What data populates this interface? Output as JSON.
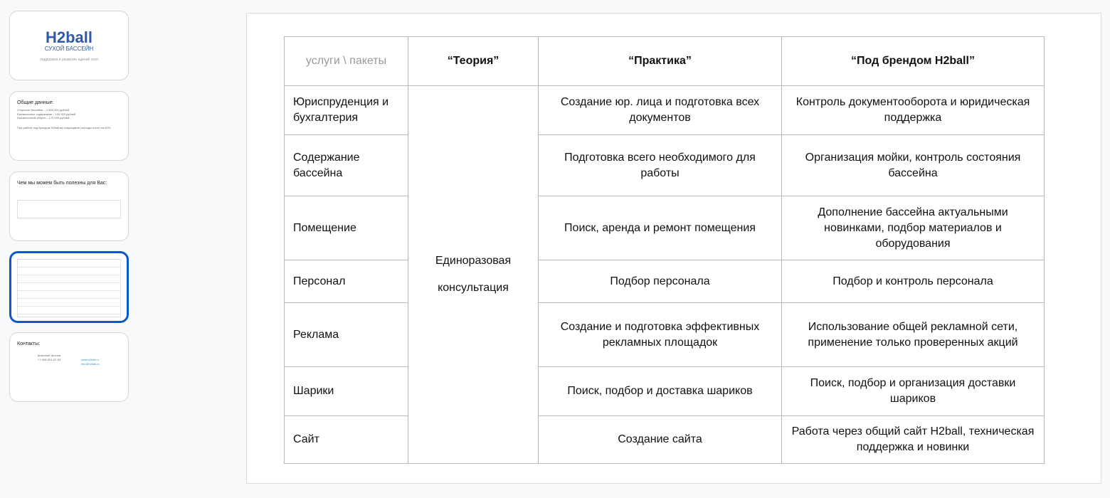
{
  "thumbnails": [
    {
      "logo": "H2ball",
      "logo_sub": "СУХОЙ БАССЕЙН",
      "subtitle": "поддержка и развитие единой сети"
    },
    {
      "title": "Общие данные:",
      "lines": [
        "Открытие бассейна – 1 500 000 рублей",
        "Ежемесячное содержание – 130 000 рублей",
        "Ежемесячный оборот – 170 000 рублей",
        "При работе под брендом H2ball вы сокращаете расходы почти на 50%"
      ]
    },
    {
      "title": "Чем мы можем быть полезны для Вас:"
    },
    {},
    {
      "title": "Контакты:",
      "contacts": [
        "Анатолий Шостак",
        "+7-926-001-67-53"
      ],
      "links": [
        "www.h2ball.ru",
        "info@h2ball.ru"
      ]
    }
  ],
  "colors": {
    "selected_border": "#0b57d0",
    "accent_red": "#e53935"
  },
  "table": {
    "corner": "услуги \\ пакеты",
    "headers": [
      "“Теория”",
      "“Практика”",
      "“Под брендом H2ball”"
    ],
    "theory_merged": "Единоразовая\nконсультация",
    "rows": [
      {
        "service": "Юриспруденция и бухгалтерия",
        "practice": "Создание юр. лица и подготовка всех документов",
        "brand": "Контроль документооборота и юридическая поддержка"
      },
      {
        "service": "Содержание бассейна",
        "practice": "Подготовка всего необходимого для работы",
        "brand": "Организация мойки, контроль состояния бассейна"
      },
      {
        "service": "Помещение",
        "practice": "Поиск, аренда и ремонт помещения",
        "brand": "Дополнение бассейна актуальными новинками, подбор материалов и оборудования"
      },
      {
        "service": "Персонал",
        "practice": "Подбор персонала",
        "brand": "Подбор и контроль персонала"
      },
      {
        "service": "Реклама",
        "practice": "Создание и подготовка эффективных рекламных площадок",
        "brand": "Использование общей рекламной сети, применение только проверенных акций"
      },
      {
        "service": "Шарики",
        "practice": "Поиск, подбор и доставка шариков",
        "brand": "Поиск, подбор и организация доставки шариков"
      },
      {
        "service": "Сайт",
        "practice": "Создание сайта",
        "brand": "Работа через общий сайт H2ball, техническая поддержка и новинки"
      }
    ]
  }
}
